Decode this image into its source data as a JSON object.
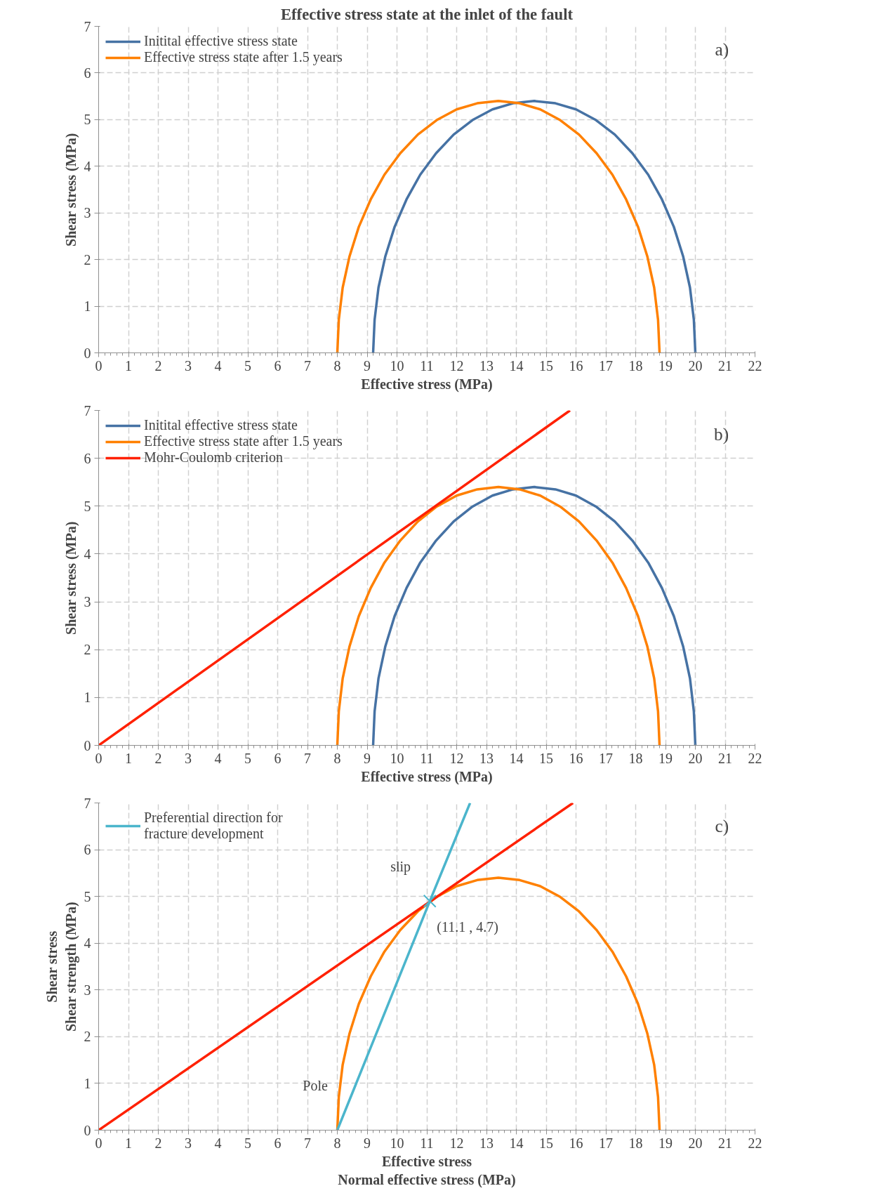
{
  "chart_data": [
    {
      "type": "line",
      "title": "Effective stress state at the inlet of the fault",
      "xlabel": "Effective stress (MPa)",
      "ylabel": "Shear stress (MPa)",
      "xlim": [
        0,
        22
      ],
      "ylim": [
        0,
        7
      ],
      "xticks": [
        0,
        1,
        2,
        3,
        4,
        5,
        6,
        7,
        8,
        9,
        10,
        11,
        12,
        13,
        14,
        15,
        16,
        17,
        18,
        19,
        20,
        21,
        22
      ],
      "yticks": [
        0,
        1,
        2,
        3,
        4,
        5,
        6,
        7
      ],
      "grid": true,
      "legend": "top left",
      "marker": "none",
      "annotations": [
        "a)"
      ],
      "series": [
        {
          "name": "Initital effective stress state",
          "color": "#4672a4",
          "x": [
            9.2,
            9.25,
            9.38,
            9.61,
            9.92,
            10.32,
            10.78,
            11.31,
            11.9,
            12.53,
            13.2,
            13.89,
            14.6,
            15.31,
            16.0,
            16.67,
            17.3,
            17.89,
            18.42,
            18.88,
            19.28,
            19.59,
            19.82,
            19.95,
            20
          ],
          "values": [
            0,
            0.71,
            1.4,
            2.07,
            2.7,
            3.29,
            3.82,
            4.28,
            4.68,
            4.99,
            5.22,
            5.35,
            5.4,
            5.35,
            5.22,
            4.99,
            4.68,
            4.28,
            3.82,
            3.29,
            2.7,
            2.07,
            1.4,
            0.71,
            0
          ]
        },
        {
          "name": "Effective stress state after 1.5 years",
          "color": "#ff8000",
          "x": [
            8,
            8.05,
            8.18,
            8.41,
            8.72,
            9.12,
            9.58,
            10.11,
            10.7,
            11.33,
            12.0,
            12.69,
            13.4,
            14.11,
            14.8,
            15.47,
            16.1,
            16.69,
            17.22,
            17.68,
            18.08,
            18.39,
            18.62,
            18.75,
            18.8
          ],
          "values": [
            0,
            0.71,
            1.4,
            2.07,
            2.7,
            3.29,
            3.82,
            4.28,
            4.68,
            4.99,
            5.22,
            5.35,
            5.4,
            5.35,
            5.22,
            4.99,
            4.68,
            4.28,
            3.82,
            3.29,
            2.7,
            2.07,
            1.4,
            0.71,
            0
          ]
        }
      ]
    },
    {
      "type": "line",
      "xlabel": "Effective stress (MPa)",
      "ylabel": "Shear stress (MPa)",
      "xlim": [
        0,
        22
      ],
      "ylim": [
        0,
        7
      ],
      "xticks": [
        0,
        1,
        2,
        3,
        4,
        5,
        6,
        7,
        8,
        9,
        10,
        11,
        12,
        13,
        14,
        15,
        16,
        17,
        18,
        19,
        20,
        21,
        22
      ],
      "yticks": [
        0,
        1,
        2,
        3,
        4,
        5,
        6,
        7
      ],
      "grid": true,
      "legend": "top left",
      "marker": "none",
      "annotations": [
        "b)"
      ],
      "series": [
        {
          "name": "Initital effective stress state",
          "color": "#4672a4",
          "x": [
            9.2,
            9.25,
            9.38,
            9.61,
            9.92,
            10.32,
            10.78,
            11.31,
            11.9,
            12.53,
            13.2,
            13.89,
            14.6,
            15.31,
            16.0,
            16.67,
            17.3,
            17.89,
            18.42,
            18.88,
            19.28,
            19.59,
            19.82,
            19.95,
            20
          ],
          "values": [
            0,
            0.71,
            1.4,
            2.07,
            2.7,
            3.29,
            3.82,
            4.28,
            4.68,
            4.99,
            5.22,
            5.35,
            5.4,
            5.35,
            5.22,
            4.99,
            4.68,
            4.28,
            3.82,
            3.29,
            2.7,
            2.07,
            1.4,
            0.71,
            0
          ]
        },
        {
          "name": "Effective stress state after 1.5 years",
          "color": "#ff8000",
          "x": [
            8,
            8.05,
            8.18,
            8.41,
            8.72,
            9.12,
            9.58,
            10.11,
            10.7,
            11.33,
            12.0,
            12.69,
            13.4,
            14.11,
            14.8,
            15.47,
            16.1,
            16.69,
            17.22,
            17.68,
            18.08,
            18.39,
            18.62,
            18.75,
            18.8
          ],
          "values": [
            0,
            0.71,
            1.4,
            2.07,
            2.7,
            3.29,
            3.82,
            4.28,
            4.68,
            4.99,
            5.22,
            5.35,
            5.4,
            5.35,
            5.22,
            4.99,
            4.68,
            4.28,
            3.82,
            3.29,
            2.7,
            2.07,
            1.4,
            0.71,
            0
          ]
        },
        {
          "name": "Mohr-Coulomb criterion",
          "color": "#ff2000",
          "x": [
            0,
            15.8
          ],
          "values": [
            0,
            7
          ]
        }
      ]
    },
    {
      "type": "line",
      "xlabel": "Effective stress\nNormal effective stress (MPa)",
      "ylabel": "Shear stress\nShear strength (MPa)",
      "xlim": [
        0,
        22
      ],
      "ylim": [
        0,
        7
      ],
      "xticks": [
        0,
        1,
        2,
        3,
        4,
        5,
        6,
        7,
        8,
        9,
        10,
        11,
        12,
        13,
        14,
        15,
        16,
        17,
        18,
        19,
        20,
        21,
        22
      ],
      "yticks": [
        0,
        1,
        2,
        3,
        4,
        5,
        6,
        7
      ],
      "grid": true,
      "legend": "top left",
      "marker": "none",
      "annotations": [
        "c)",
        "slip",
        {
          "text": "(11.1 ,  4.7)",
          "x": 11.1,
          "y": 4.7
        },
        "Pole"
      ],
      "series": [
        {
          "color": "#ff8000",
          "x": [
            8,
            8.05,
            8.18,
            8.41,
            8.72,
            9.12,
            9.58,
            10.11,
            10.7,
            11.33,
            12.0,
            12.69,
            13.4,
            14.11,
            14.8,
            15.47,
            16.1,
            16.69,
            17.22,
            17.68,
            18.08,
            18.39,
            18.62,
            18.75,
            18.8
          ],
          "values": [
            0,
            0.71,
            1.4,
            2.07,
            2.7,
            3.29,
            3.82,
            4.28,
            4.68,
            4.99,
            5.22,
            5.35,
            5.4,
            5.35,
            5.22,
            4.99,
            4.68,
            4.28,
            3.82,
            3.29,
            2.7,
            2.07,
            1.4,
            0.71,
            0
          ]
        },
        {
          "color": "#ff2000",
          "x": [
            0,
            15.9
          ],
          "values": [
            0,
            7
          ]
        },
        {
          "name": "Preferential direction for\nfracture development",
          "color": "#4bb5cc",
          "x": [
            8,
            11.1,
            12.45
          ],
          "values": [
            0,
            4.9,
            7
          ]
        },
        {
          "type": "scatter",
          "color": "#4bb5cc",
          "marker": "cross",
          "x": [
            11.1
          ],
          "values": [
            4.9
          ]
        }
      ]
    }
  ]
}
